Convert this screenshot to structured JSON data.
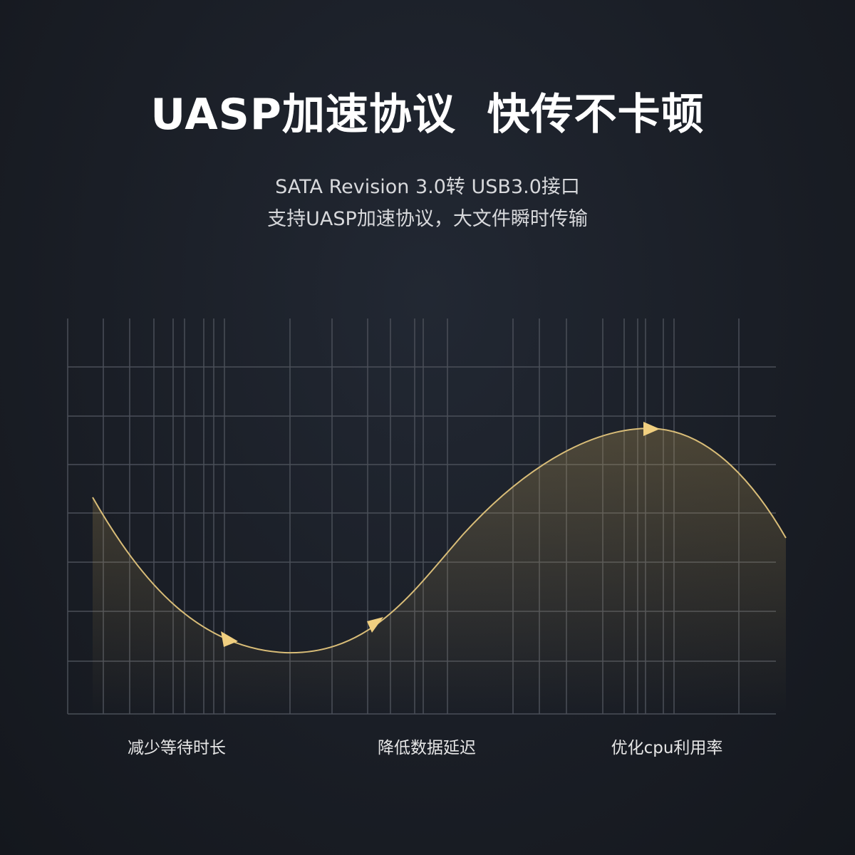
{
  "header": {
    "title": "UASP加速协议  快传不卡顿",
    "subtitle": [
      "SATA Revision 3.0转 USB3.0接口",
      "支持UASP加速协议，大文件瞬时传输"
    ]
  },
  "labels": [
    "减少等待时长",
    "降低数据延迟",
    "优化cpu利用率"
  ]
}
